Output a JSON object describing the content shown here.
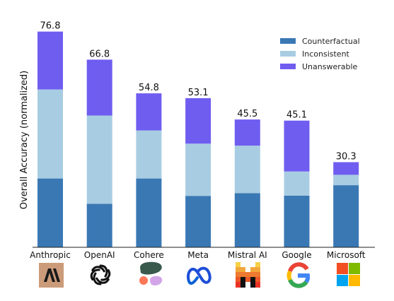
{
  "chart_data": {
    "type": "bar",
    "stacked": true,
    "ylabel": "Overall Accuracy (normalized)",
    "xlabel": "",
    "ylim": [
      0,
      82
    ],
    "grid": false,
    "legend_placement": "top-right",
    "categories": [
      "Anthropic",
      "OpenAI",
      "Cohere",
      "Meta",
      "Mistral AI",
      "Google",
      "Microsoft"
    ],
    "totals": [
      "76.8",
      "66.8",
      "54.8",
      "53.1",
      "45.5",
      "45.1",
      "30.3"
    ],
    "series": [
      {
        "name": "Counterfactual",
        "color": "#3a78b4",
        "values": [
          24.5,
          15.5,
          24.5,
          18.3,
          19.3,
          18.4,
          22.1
        ]
      },
      {
        "name": "Inconsistent",
        "color": "#a8cde2",
        "values": [
          31.7,
          31.4,
          17.1,
          18.6,
          16.9,
          8.6,
          3.7
        ]
      },
      {
        "name": "Unanswerable",
        "color": "#6f5df0",
        "values": [
          20.6,
          19.9,
          13.2,
          16.2,
          9.3,
          18.1,
          4.5
        ]
      }
    ],
    "logos": [
      "anthropic-logo",
      "openai-logo",
      "cohere-logo",
      "meta-logo",
      "mistral-logo",
      "google-logo",
      "microsoft-logo"
    ]
  }
}
